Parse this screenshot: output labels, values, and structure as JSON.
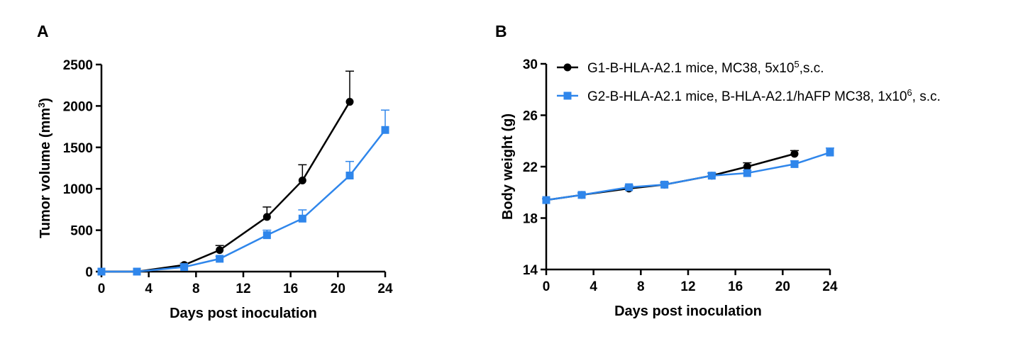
{
  "chart_data": [
    {
      "panel": "A",
      "type": "line",
      "xlabel": "Days post inoculation",
      "ylabel": "Tumor volume (mm",
      "ylabel_sup": "3",
      "ylabel_end": ")",
      "xlim": [
        0,
        24
      ],
      "ylim": [
        0,
        2500
      ],
      "xticks": [
        0,
        4,
        8,
        12,
        16,
        20,
        24
      ],
      "yticks": [
        0,
        500,
        1000,
        1500,
        2000,
        2500
      ],
      "grid": false,
      "series": [
        {
          "marker": "circle",
          "color": "#000000",
          "x": [
            0,
            3,
            7,
            10,
            14,
            17,
            21
          ],
          "y": [
            0,
            0,
            80,
            260,
            660,
            1100,
            2050
          ],
          "err": [
            0,
            0,
            20,
            55,
            120,
            190,
            370
          ]
        },
        {
          "marker": "square",
          "color": "#2F86EB",
          "x": [
            0,
            3,
            7,
            10,
            14,
            17,
            21,
            24
          ],
          "y": [
            0,
            0,
            55,
            155,
            440,
            640,
            1160,
            1710
          ],
          "err": [
            0,
            0,
            12,
            30,
            60,
            105,
            170,
            240
          ]
        }
      ]
    },
    {
      "panel": "B",
      "type": "line",
      "xlabel": "Days post inoculation",
      "ylabel": "Body weight (g)",
      "xlim": [
        0,
        24
      ],
      "ylim": [
        14,
        30
      ],
      "xticks": [
        0,
        4,
        8,
        12,
        16,
        20,
        24
      ],
      "yticks": [
        14,
        18,
        22,
        26,
        30
      ],
      "grid": false,
      "legend_position": "top",
      "series": [
        {
          "name": "G1-B-HLA-A2.1 mice, MC38, 5x10",
          "name_sup": "5",
          "name_end": ",s.c.",
          "marker": "circle",
          "color": "#000000",
          "x": [
            0,
            3,
            7,
            10,
            14,
            17,
            21
          ],
          "y": [
            19.4,
            19.8,
            20.3,
            20.6,
            21.3,
            22.0,
            23.0
          ],
          "err": [
            0.1,
            0.15,
            0.15,
            0.15,
            0.2,
            0.3,
            0.25
          ]
        },
        {
          "name": "G2-B-HLA-A2.1 mice, B-HLA-A2.1/hAFP MC38, 1x10",
          "name_sup": "6",
          "name_end": ", s.c.",
          "marker": "square",
          "color": "#2F86EB",
          "x": [
            0,
            3,
            7,
            10,
            14,
            17,
            21,
            24
          ],
          "y": [
            19.4,
            19.8,
            20.4,
            20.6,
            21.3,
            21.5,
            22.2,
            23.1
          ],
          "err": [
            0.1,
            0.15,
            0.15,
            0.2,
            0.2,
            0.2,
            0.25,
            0.35
          ]
        }
      ]
    }
  ]
}
